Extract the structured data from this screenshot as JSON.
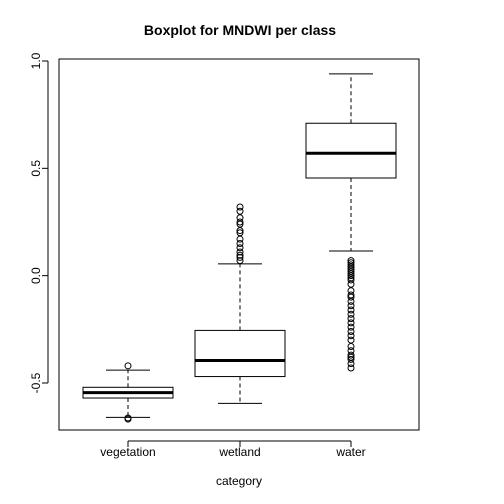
{
  "chart_data": {
    "type": "boxplot",
    "title": "Boxplot for MNDWI per class",
    "xlabel": "category",
    "ylabel": "",
    "ylim": [
      -0.73,
      1.0
    ],
    "y_ticks": [
      -0.5,
      0.0,
      0.5,
      1.0
    ],
    "y_tick_labels": [
      "-0.5",
      "0.0",
      "0.5",
      "1.0"
    ],
    "categories": [
      "vegetation",
      "wetland",
      "water"
    ],
    "boxes": [
      {
        "category": "vegetation",
        "whisker_low": -0.66,
        "q1": -0.57,
        "median": -0.545,
        "q3": -0.52,
        "whisker_high": -0.44,
        "outliers": [
          -0.42,
          -0.663,
          -0.668
        ]
      },
      {
        "category": "wetland",
        "whisker_low": -0.595,
        "q1": -0.47,
        "median": -0.395,
        "q3": -0.255,
        "whisker_high": 0.055,
        "outliers": [
          0.07,
          0.085,
          0.095,
          0.11,
          0.13,
          0.15,
          0.17,
          0.2,
          0.21,
          0.24,
          0.25,
          0.27,
          0.3,
          0.32
        ]
      },
      {
        "category": "water",
        "whisker_low": 0.115,
        "q1": 0.455,
        "median": 0.57,
        "q3": 0.71,
        "whisker_high": 0.94,
        "outliers": [
          0.07,
          0.06,
          0.05,
          0.04,
          0.03,
          0.02,
          0.01,
          0.0,
          -0.01,
          -0.02,
          -0.04,
          -0.07,
          -0.09,
          -0.1,
          -0.12,
          -0.14,
          -0.16,
          -0.18,
          -0.2,
          -0.22,
          -0.24,
          -0.26,
          -0.28,
          -0.3,
          -0.33,
          -0.35,
          -0.37,
          -0.38,
          -0.39,
          -0.41,
          -0.43
        ]
      }
    ],
    "grid": false,
    "legend": "none"
  }
}
